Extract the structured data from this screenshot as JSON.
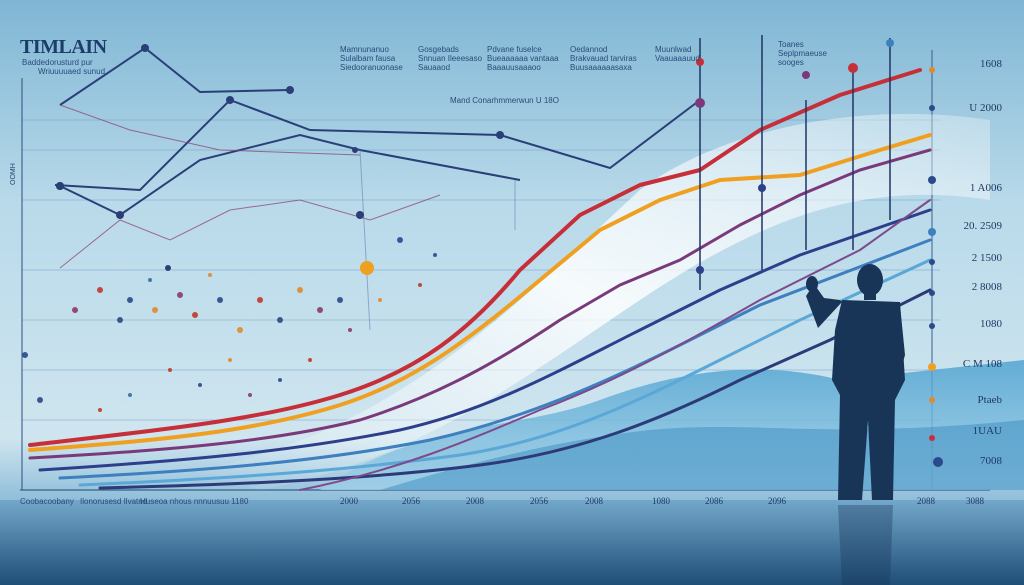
{
  "title": "TIMLAIN",
  "subtitle": [
    "Baddedorusturd pur",
    "Wriuuuuaed sunud"
  ],
  "top_labels": [
    [
      "Mamnunanuo",
      "Sulalbam fausa",
      "Siedooranuonase"
    ],
    [
      "Gosgebads",
      "Snnuan Ileeesaso",
      "Sauaaod"
    ],
    [
      "Pdvane fuselce",
      "Bueaaaaaa vantaaa",
      "Baaauusaaaoo"
    ],
    [
      "Oedannod",
      "Brakvauad tarviras",
      "Buusaaaaaasaxa"
    ],
    [
      "Muunlwad",
      "Vaauaaauud"
    ],
    [
      "Toanes",
      "Seplpmaeuse",
      "sooges"
    ]
  ],
  "mid_label": "Mand Conarhmmerwun U 18O",
  "right_labels": [
    "1608",
    "U 2000",
    "1 A006",
    "20. 2509",
    "2 1500",
    "2 8008",
    "1080",
    "C M 108",
    "Ptaeb",
    "1UAU",
    "7008"
  ],
  "year_labels": [
    "2000",
    "2056",
    "2008",
    "2056",
    "2008",
    "1080",
    "2086",
    "2096",
    "2088",
    "3088"
  ],
  "bottom_left": [
    "Coobacoobany",
    "Ilonorusesd Ilvatnd",
    "Huseoa nhous nnnuusuu 1180"
  ],
  "left_axis_label": "OOMH"
}
